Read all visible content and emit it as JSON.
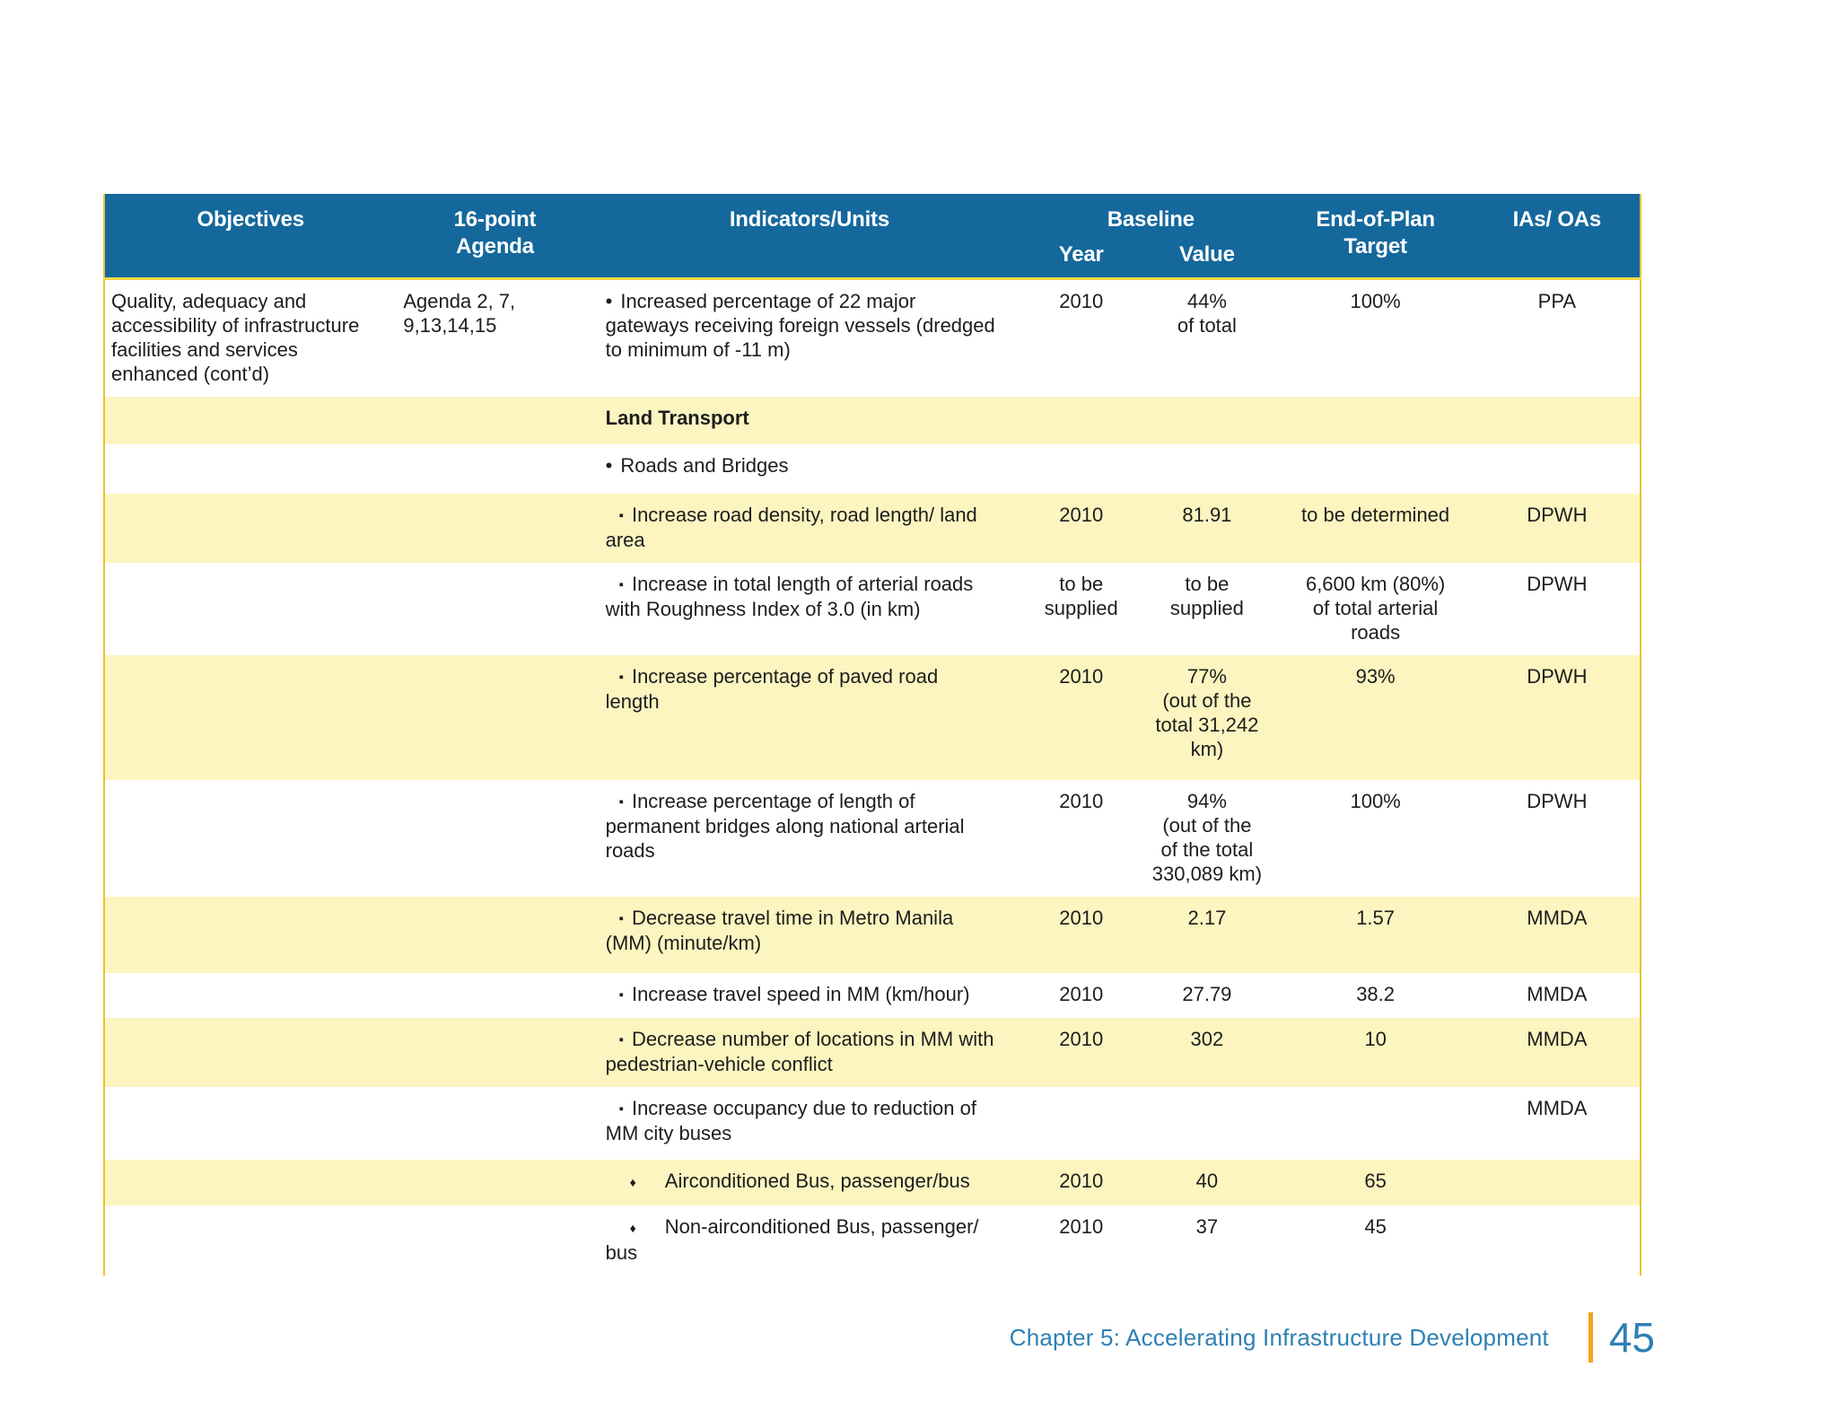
{
  "table": {
    "colors": {
      "header_bg": "#15689c",
      "row_yellow": "#fcf5c0",
      "border_gold": "#e9c231",
      "body_text": "#1d1d1d"
    },
    "header": {
      "objectives": "Objectives",
      "agenda": "16-point\nAgenda",
      "indicators": "Indicators/Units",
      "baseline": "Baseline",
      "year": "Year",
      "value": "Value",
      "target": "End-of-Plan\nTarget",
      "ias": "IAs/ OAs"
    },
    "rows": [
      {
        "bg": "white",
        "objective": "Quality, adequacy and\naccessibility of infrastructure\nfacilities and services\nenhanced (cont’d)",
        "agenda": "Agenda 2, 7,\n9,13,14,15",
        "level": 1,
        "marker": "•",
        "indicator": "Increased percentage of 22 major\ngateways receiving foreign vessels (dredged\nto minimum of -11 m)",
        "year": "2010",
        "value": "44%\nof total",
        "target": "100%",
        "ias": "PPA"
      },
      {
        "bg": "yellow",
        "objective": "",
        "agenda": "",
        "level": 0,
        "marker": "",
        "indicator": "Land Transport",
        "year": "",
        "value": "",
        "target": "",
        "ias": ""
      },
      {
        "bg": "white",
        "objective": "",
        "agenda": "",
        "level": 1,
        "marker": "•",
        "indicator": "Roads and Bridges",
        "year": "",
        "value": "",
        "target": "",
        "ias": ""
      },
      {
        "bg": "yellow",
        "objective": "",
        "agenda": "",
        "level": 2,
        "marker": "▪",
        "indicator": "Increase road density, road length/ land\narea",
        "year": "2010",
        "value": "81.91",
        "target": "to be determined",
        "ias": "DPWH"
      },
      {
        "bg": "white",
        "objective": "",
        "agenda": "",
        "level": 2,
        "marker": "▪",
        "indicator": "Increase in total length of arterial roads\nwith Roughness Index of 3.0 (in km)",
        "year": "to be\nsupplied",
        "value": "to be\nsupplied",
        "target": "6,600 km (80%)\nof total arterial\nroads",
        "ias": "DPWH"
      },
      {
        "bg": "yellow",
        "objective": "",
        "agenda": "",
        "level": 2,
        "marker": "▪",
        "indicator": "Increase percentage of paved road\nlength",
        "year": "2010",
        "value": "77%\n(out of the\ntotal 31,242\nkm)",
        "target": "93%",
        "ias": "DPWH"
      },
      {
        "bg": "white",
        "objective": "",
        "agenda": "",
        "level": 2,
        "marker": "▪",
        "indicator": "Increase percentage of length of\npermanent bridges along national arterial\nroads",
        "year": "2010",
        "value": "94%\n(out of the\nof the total\n330,089 km)",
        "target": "100%",
        "ias": "DPWH"
      },
      {
        "bg": "yellow",
        "objective": "",
        "agenda": "",
        "level": 2,
        "marker": "▪",
        "indicator": "Decrease travel time in Metro Manila\n(MM) (minute/km)",
        "year": "2010",
        "value": "2.17",
        "target": "1.57",
        "ias": "MMDA"
      },
      {
        "bg": "white",
        "objective": "",
        "agenda": "",
        "level": 2,
        "marker": "▪",
        "indicator": "Increase travel speed in MM (km/hour)",
        "year": "2010",
        "value": "27.79",
        "target": "38.2",
        "ias": "MMDA"
      },
      {
        "bg": "yellow",
        "objective": "",
        "agenda": "",
        "level": 2,
        "marker": "▪",
        "indicator": "Decrease number of locations in MM with\npedestrian-vehicle conflict",
        "year": "2010",
        "value": "302",
        "target": "10",
        "ias": "MMDA"
      },
      {
        "bg": "white",
        "objective": "",
        "agenda": "",
        "level": 2,
        "marker": "▪",
        "indicator": "Increase occupancy due to reduction of\nMM city buses",
        "year": "",
        "value": "",
        "target": "",
        "ias": "MMDA"
      },
      {
        "bg": "yellow",
        "objective": "",
        "agenda": "",
        "level": 3,
        "marker": "♦",
        "indicator": "Airconditioned Bus, passenger/bus",
        "year": "2010",
        "value": "40",
        "target": "65",
        "ias": ""
      },
      {
        "bg": "white",
        "objective": "",
        "agenda": "",
        "level": 3,
        "marker": "♦",
        "indicator": "Non-airconditioned Bus, passenger/\nbus",
        "year": "2010",
        "value": "37",
        "target": "45",
        "ias": ""
      }
    ]
  },
  "footer": {
    "chapter": "Chapter 5: Accelerating Infrastructure Development",
    "page_number": "45",
    "accent_color": "#f5a41f",
    "text_color": "#2e80b4"
  }
}
